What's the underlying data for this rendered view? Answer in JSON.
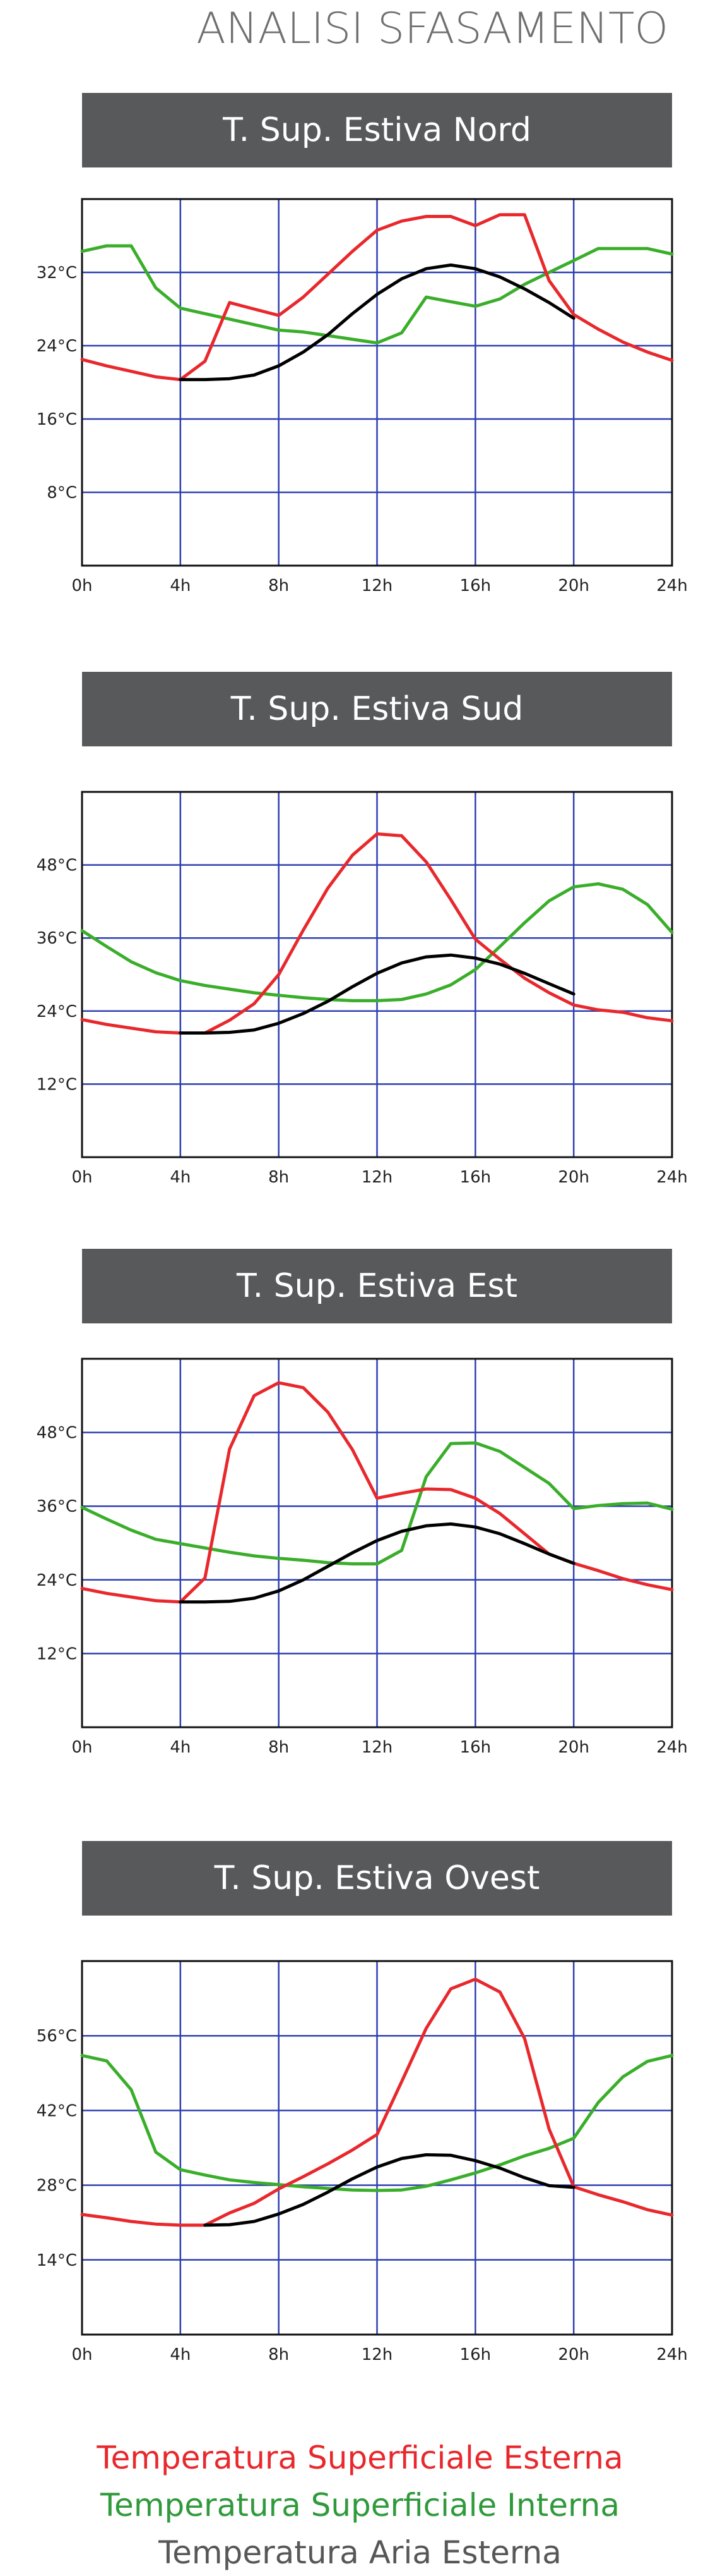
{
  "page": {
    "title": "ANALISI SFASAMENTO"
  },
  "colors": {
    "external_surface": "#e8282c",
    "internal_surface": "#3aae2a",
    "external_air": "#000000",
    "grid": "#2d3fb0",
    "banner_bg": "#58595b"
  },
  "legend": [
    {
      "label": "Temperatura Superficiale Esterna",
      "color": "#e8282c"
    },
    {
      "label": "Temperatura Superficiale Interna",
      "color": "#2f9a3b"
    },
    {
      "label": "Temperatura Aria Esterna",
      "color": "#575757"
    }
  ],
  "chart_data": [
    {
      "type": "line",
      "title": "T. Sup. Estiva Nord",
      "x_ticks": [
        "0h",
        "4h",
        "8h",
        "12h",
        "16h",
        "20h",
        "24h"
      ],
      "y_ticks": [
        "8°C",
        "16°C",
        "24°C",
        "32°C"
      ],
      "xlim": [
        0,
        24
      ],
      "ylim": [
        0,
        40
      ],
      "y_tick_values": [
        8,
        16,
        24,
        32
      ],
      "grid": true,
      "series": [
        {
          "key": "red",
          "x": [
            0,
            1,
            2,
            3,
            4,
            5,
            6,
            7,
            8,
            9,
            10,
            11,
            12,
            13,
            14,
            15,
            16,
            17,
            18,
            19,
            20,
            21,
            22,
            23,
            24
          ],
          "y": [
            22.5,
            21.8,
            21.2,
            20.6,
            20.3,
            22.3,
            28.7,
            28.0,
            27.3,
            29.3,
            31.8,
            34.3,
            36.6,
            37.6,
            38.1,
            38.1,
            37.1,
            38.3,
            38.3,
            31.1,
            27.4,
            25.8,
            24.4,
            23.3,
            22.4
          ]
        },
        {
          "key": "green",
          "x": [
            0,
            1,
            2,
            3,
            4,
            5,
            6,
            7,
            8,
            9,
            10,
            11,
            12,
            13,
            14,
            15,
            16,
            17,
            18,
            19,
            20,
            21,
            22,
            23,
            24
          ],
          "y": [
            34.3,
            34.9,
            34.9,
            30.3,
            28.1,
            27.5,
            26.9,
            26.3,
            25.7,
            25.5,
            25.1,
            24.7,
            24.3,
            25.4,
            29.3,
            28.8,
            28.3,
            29.1,
            30.7,
            32.0,
            33.3,
            34.6,
            34.6,
            34.6,
            34.0
          ]
        },
        {
          "key": "black",
          "x": [
            4,
            5,
            6,
            7,
            8,
            9,
            10,
            11,
            12,
            13,
            14,
            15,
            16,
            17,
            18,
            19,
            20
          ],
          "y": [
            20.3,
            20.3,
            20.4,
            20.8,
            21.8,
            23.3,
            25.2,
            27.5,
            29.6,
            31.3,
            32.4,
            32.8,
            32.4,
            31.5,
            30.2,
            28.7,
            27.0
          ]
        }
      ]
    },
    {
      "type": "line",
      "title": "T. Sup. Estiva Sud",
      "x_ticks": [
        "0h",
        "4h",
        "8h",
        "12h",
        "16h",
        "20h",
        "24h"
      ],
      "y_ticks": [
        "12°C",
        "24°C",
        "36°C",
        "48°C"
      ],
      "xlim": [
        0,
        24
      ],
      "ylim": [
        0,
        60
      ],
      "y_tick_values": [
        12,
        24,
        36,
        48
      ],
      "grid": true,
      "series": [
        {
          "key": "red",
          "x": [
            0,
            1,
            2,
            3,
            4,
            5,
            6,
            7,
            8,
            9,
            10,
            11,
            12,
            13,
            14,
            15,
            16,
            17,
            18,
            19,
            20,
            21,
            22,
            23,
            24
          ],
          "y": [
            22.6,
            21.8,
            21.2,
            20.6,
            20.4,
            20.4,
            22.5,
            25.2,
            30.0,
            37.3,
            44.2,
            49.6,
            53.1,
            52.8,
            48.5,
            42.3,
            35.8,
            32.5,
            29.4,
            27.0,
            25.0,
            24.2,
            23.8,
            22.9,
            22.4
          ]
        },
        {
          "key": "green",
          "x": [
            0,
            1,
            2,
            3,
            4,
            5,
            6,
            7,
            8,
            9,
            10,
            11,
            12,
            13,
            14,
            15,
            16,
            17,
            18,
            19,
            20,
            21,
            22,
            23,
            24
          ],
          "y": [
            37.2,
            34.6,
            32.1,
            30.3,
            29.0,
            28.2,
            27.6,
            27.0,
            26.6,
            26.2,
            25.9,
            25.7,
            25.7,
            25.9,
            26.8,
            28.3,
            30.8,
            34.6,
            38.5,
            42.1,
            44.4,
            44.9,
            44.0,
            41.5,
            36.9
          ]
        },
        {
          "key": "black",
          "x": [
            4,
            5,
            6,
            7,
            8,
            9,
            10,
            11,
            12,
            13,
            14,
            15,
            16,
            17,
            18,
            19,
            20
          ],
          "y": [
            20.4,
            20.4,
            20.5,
            20.9,
            22.0,
            23.6,
            25.6,
            28.0,
            30.2,
            31.9,
            32.9,
            33.2,
            32.7,
            31.7,
            30.2,
            28.5,
            26.8
          ]
        }
      ]
    },
    {
      "type": "line",
      "title": "T. Sup. Estiva Est",
      "x_ticks": [
        "0h",
        "4h",
        "8h",
        "12h",
        "16h",
        "20h",
        "24h"
      ],
      "y_ticks": [
        "12°C",
        "24°C",
        "36°C",
        "48°C"
      ],
      "xlim": [
        0,
        24
      ],
      "ylim": [
        0,
        60
      ],
      "y_tick_values": [
        12,
        24,
        36,
        48
      ],
      "grid": true,
      "series": [
        {
          "key": "red",
          "x": [
            0,
            1,
            2,
            3,
            4,
            5,
            6,
            7,
            8,
            9,
            10,
            11,
            12,
            13,
            14,
            15,
            16,
            17,
            18,
            19,
            20,
            21,
            22,
            23,
            24
          ],
          "y": [
            22.6,
            21.8,
            21.2,
            20.6,
            20.4,
            24.3,
            45.3,
            54.0,
            56.1,
            55.3,
            51.3,
            45.2,
            37.3,
            38.1,
            38.8,
            38.7,
            37.3,
            34.8,
            31.5,
            28.2,
            26.7,
            25.5,
            24.2,
            23.2,
            22.4
          ]
        },
        {
          "key": "green",
          "x": [
            0,
            1,
            2,
            3,
            4,
            5,
            6,
            7,
            8,
            9,
            10,
            11,
            12,
            13,
            14,
            15,
            16,
            17,
            18,
            19,
            20,
            21,
            22,
            23,
            24
          ],
          "y": [
            35.8,
            33.9,
            32.1,
            30.6,
            29.9,
            29.2,
            28.5,
            27.9,
            27.5,
            27.2,
            26.8,
            26.6,
            26.6,
            28.8,
            40.8,
            46.2,
            46.3,
            44.9,
            42.3,
            39.7,
            35.6,
            36.1,
            36.4,
            36.5,
            35.5
          ]
        },
        {
          "key": "black",
          "x": [
            4,
            5,
            6,
            7,
            8,
            9,
            10,
            11,
            12,
            13,
            14,
            15,
            16,
            17,
            18,
            19,
            20
          ],
          "y": [
            20.4,
            20.4,
            20.5,
            21.0,
            22.2,
            24.0,
            26.2,
            28.4,
            30.4,
            31.9,
            32.8,
            33.1,
            32.6,
            31.5,
            29.9,
            28.2,
            26.7
          ]
        }
      ]
    },
    {
      "type": "line",
      "title": "T. Sup. Estiva Ovest",
      "x_ticks": [
        "0h",
        "4h",
        "8h",
        "12h",
        "16h",
        "20h",
        "24h"
      ],
      "y_ticks": [
        "14°C",
        "28°C",
        "42°C",
        "56°C"
      ],
      "xlim": [
        0,
        24
      ],
      "ylim": [
        0,
        70
      ],
      "y_tick_values": [
        14,
        28,
        42,
        56
      ],
      "grid": true,
      "series": [
        {
          "key": "red",
          "x": [
            0,
            1,
            2,
            3,
            4,
            5,
            6,
            7,
            8,
            9,
            10,
            11,
            12,
            13,
            14,
            15,
            16,
            17,
            18,
            19,
            20,
            21,
            22,
            23,
            24
          ],
          "y": [
            22.5,
            21.9,
            21.2,
            20.7,
            20.5,
            20.5,
            22.8,
            24.6,
            27.3,
            29.6,
            32.0,
            34.6,
            37.5,
            47.4,
            57.4,
            64.8,
            66.6,
            64.2,
            55.5,
            38.5,
            27.7,
            26.2,
            24.9,
            23.4,
            22.4
          ]
        },
        {
          "key": "green",
          "x": [
            0,
            1,
            2,
            3,
            4,
            5,
            6,
            7,
            8,
            9,
            10,
            11,
            12,
            13,
            14,
            15,
            16,
            17,
            18,
            19,
            20,
            21,
            22,
            23,
            24
          ],
          "y": [
            52.3,
            51.3,
            45.9,
            34.2,
            30.9,
            29.9,
            29.0,
            28.5,
            28.1,
            27.7,
            27.4,
            27.1,
            27.0,
            27.1,
            27.8,
            29.0,
            30.3,
            31.8,
            33.5,
            34.9,
            36.8,
            43.5,
            48.3,
            51.2,
            52.3
          ]
        },
        {
          "key": "black",
          "x": [
            5,
            6,
            7,
            8,
            9,
            10,
            11,
            12,
            13,
            14,
            15,
            16,
            17,
            18,
            19,
            20
          ],
          "y": [
            20.5,
            20.6,
            21.2,
            22.6,
            24.4,
            26.7,
            29.2,
            31.4,
            33.0,
            33.7,
            33.6,
            32.6,
            31.2,
            29.4,
            27.9,
            27.6
          ]
        }
      ]
    }
  ]
}
